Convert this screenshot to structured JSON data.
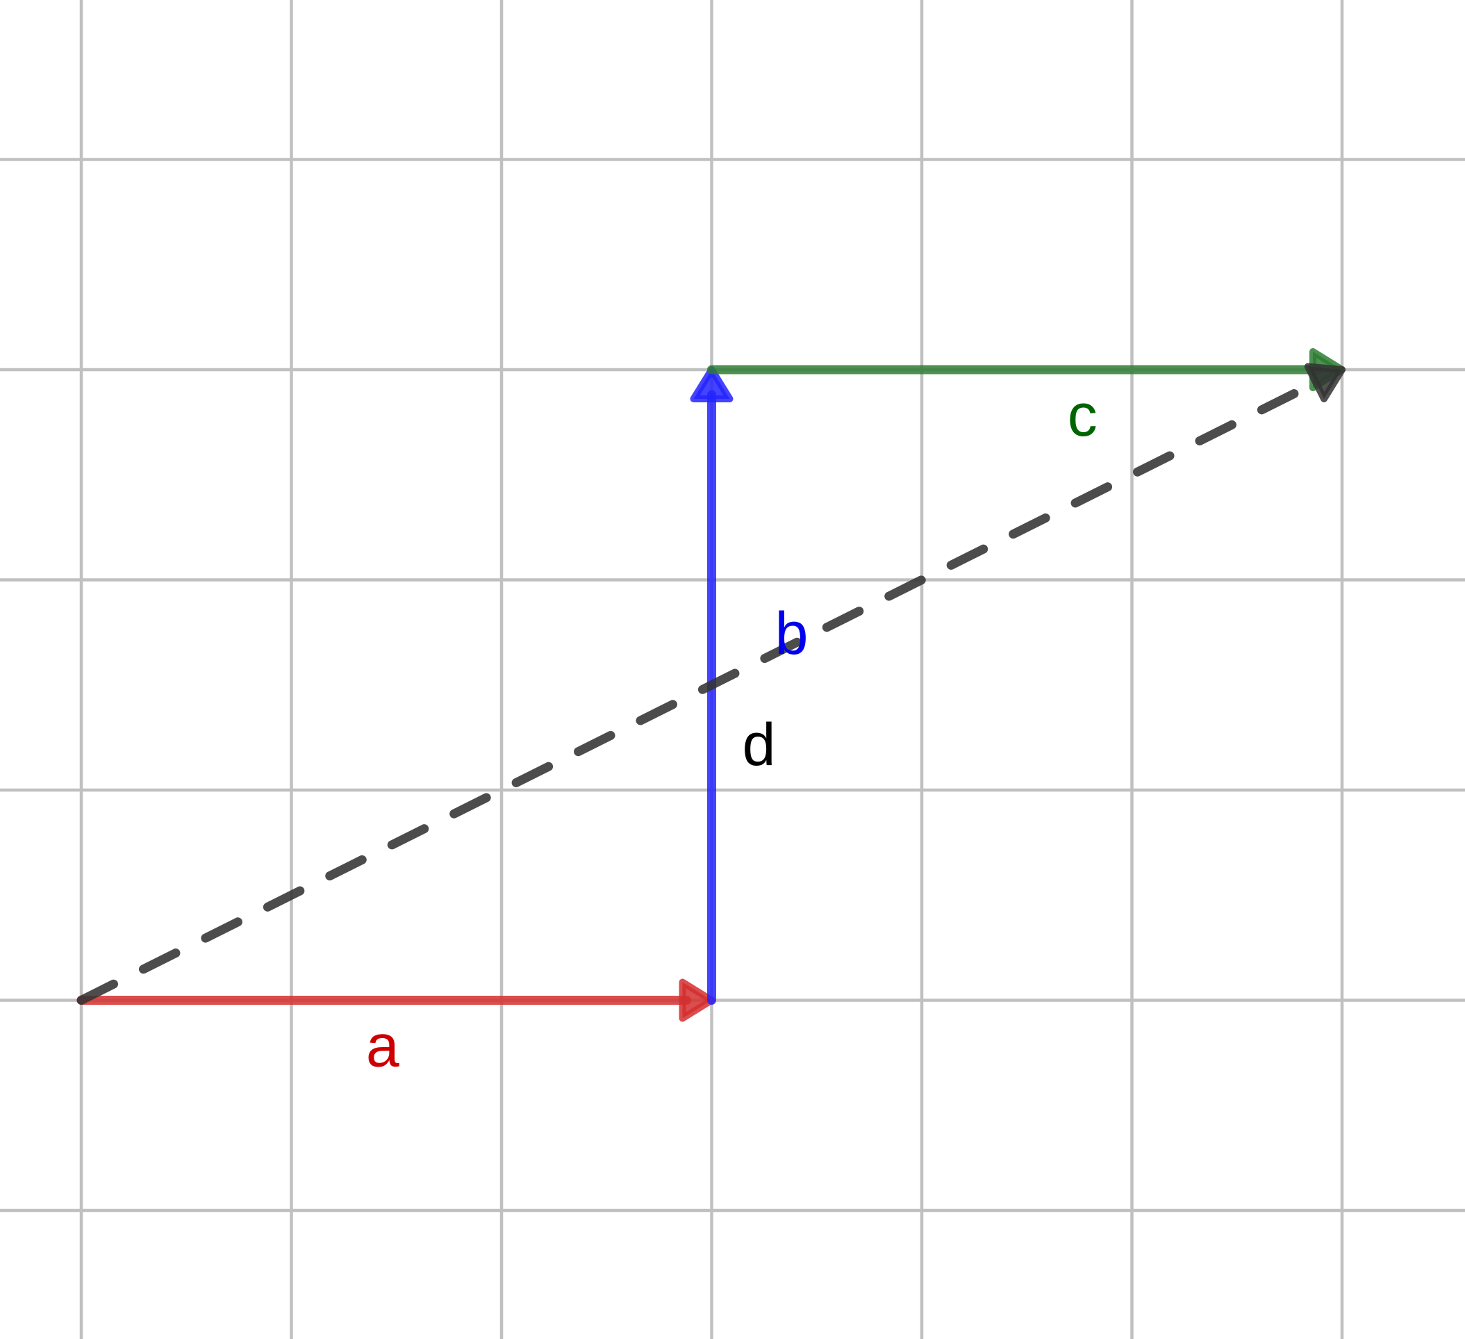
{
  "colors": {
    "background": "#ffffff",
    "grid": "#c0c0c0"
  },
  "grid": {
    "x_min": 0,
    "x_max": 6,
    "y_min": 0,
    "y_max": 5,
    "visible": true
  },
  "vectors": [
    {
      "id": "a",
      "label": "a",
      "start": [
        0,
        1
      ],
      "end": [
        3,
        1
      ],
      "color": "#d32f2f",
      "label_color": "#cc0000",
      "style": "solid"
    },
    {
      "id": "b",
      "label": "b",
      "start": [
        3,
        1
      ],
      "end": [
        3,
        4
      ],
      "color": "#2323ff",
      "label_color": "#0000ee",
      "style": "solid"
    },
    {
      "id": "c",
      "label": "c",
      "start": [
        3,
        4
      ],
      "end": [
        6,
        4
      ],
      "color": "#2e7d32",
      "label_color": "#006400",
      "style": "solid"
    },
    {
      "id": "d",
      "label": "d",
      "start": [
        0,
        1
      ],
      "end": [
        6,
        4
      ],
      "color": "#333333",
      "label_color": "#000000",
      "style": "dashed"
    }
  ]
}
